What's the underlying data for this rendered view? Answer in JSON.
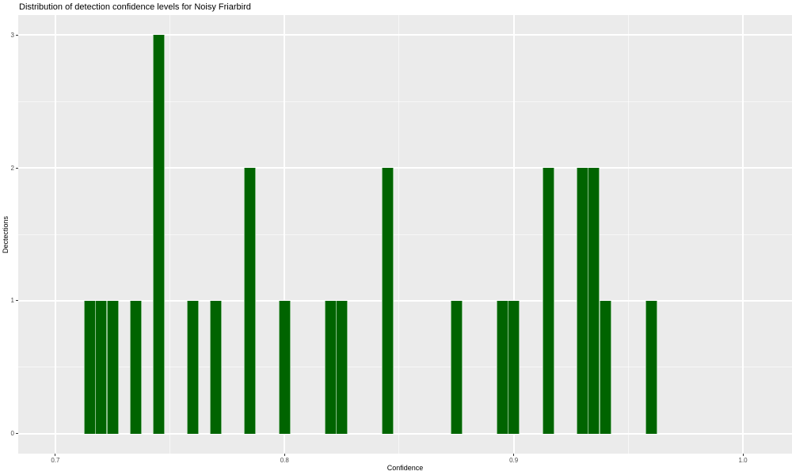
{
  "chart_data": {
    "type": "bar",
    "subtype": "histogram",
    "title": "Distribution of detection confidence levels for Noisy Friarbird",
    "xlabel": "Confidence",
    "ylabel": "Dectections",
    "binwidth": 0.005,
    "x": [
      0.715,
      0.72,
      0.725,
      0.735,
      0.745,
      0.76,
      0.77,
      0.785,
      0.8,
      0.82,
      0.825,
      0.845,
      0.875,
      0.895,
      0.9,
      0.915,
      0.93,
      0.935,
      0.94,
      0.96
    ],
    "values": [
      1,
      1,
      1,
      1,
      3,
      1,
      1,
      2,
      1,
      1,
      1,
      2,
      1,
      1,
      1,
      2,
      2,
      2,
      1,
      1
    ],
    "x_ticks": [
      0.7,
      0.8,
      0.9,
      1.0
    ],
    "x_tick_labels": [
      "0.7",
      "0.8",
      "0.9",
      "1.0"
    ],
    "x_minor_ticks": [
      0.75,
      0.85,
      0.95
    ],
    "y_ticks": [
      0,
      1,
      2,
      3
    ],
    "y_tick_labels": [
      "0",
      "1",
      "2",
      "3"
    ],
    "y_minor_ticks": [
      0.5,
      1.5,
      2.5
    ],
    "xlim": [
      0.6838,
      1.0214
    ],
    "ylim": [
      -0.15,
      3.15
    ],
    "grid": true,
    "legend": false,
    "colors": {
      "bar_fill": "#006400",
      "panel_bg": "#EBEBEB",
      "gridline": "#FFFFFF",
      "tick_text": "#4D4D4D",
      "title_text": "#000000"
    }
  }
}
